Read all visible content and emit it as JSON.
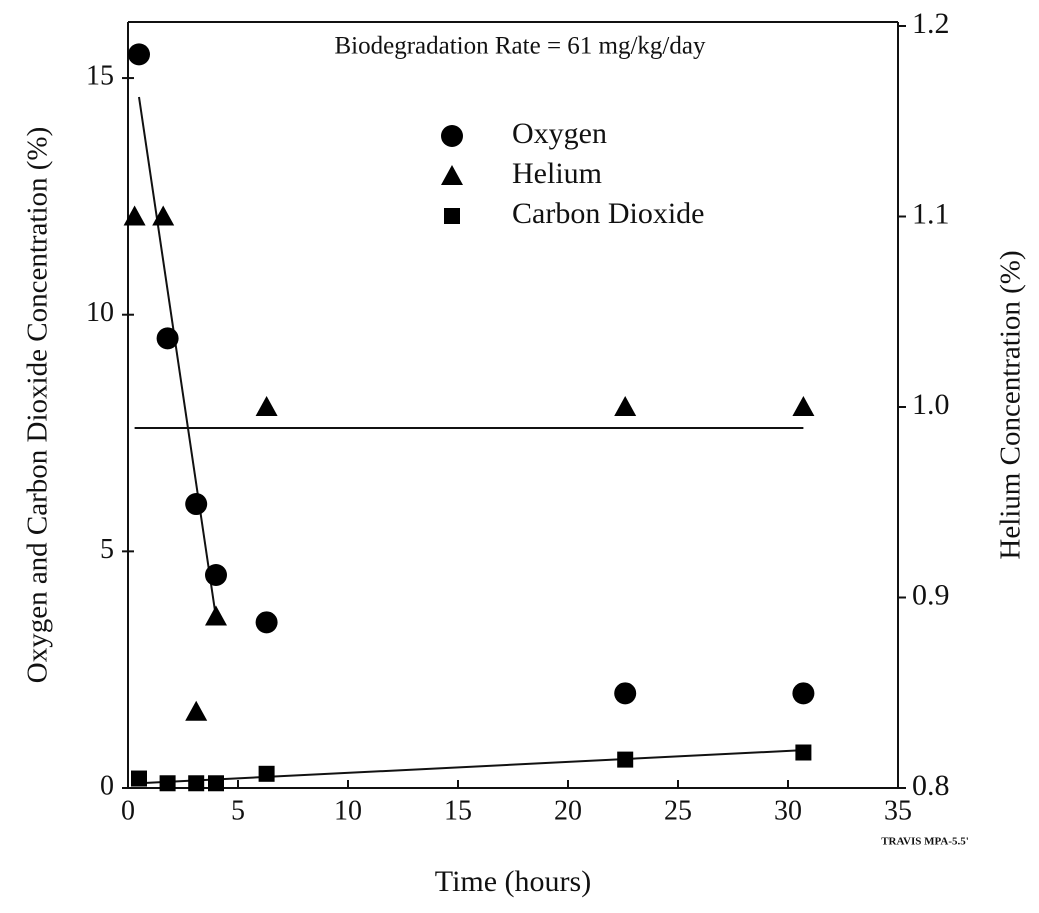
{
  "chart_data": {
    "type": "scatter",
    "annotation": "Biodegradation Rate = 61 mg/kg/day",
    "note": "TRAVIS MPA-5.5'",
    "xlabel": "Time (hours)",
    "ylabel": "Oxygen and Carbon Dioxide Concentration (%)",
    "y2label": "Helium Concentration (%)",
    "xlim": [
      0,
      35
    ],
    "xticks": [
      0,
      5,
      10,
      15,
      20,
      25,
      30,
      35
    ],
    "ylim": [
      0,
      16.1
    ],
    "yticks": [
      0,
      5,
      10,
      15
    ],
    "y2lim": [
      0.8,
      1.2
    ],
    "y2ticks": [
      0.8,
      0.9,
      {
        "value": 1,
        "label": "1.0"
      },
      1.1,
      1.2
    ],
    "legend": "top",
    "series": [
      {
        "name": "Oxygen",
        "color": "#000000",
        "marker": "circle",
        "x": [
          0.5,
          1.8,
          3.1,
          4.0,
          6.3,
          22.6,
          30.7
        ],
        "values": [
          15.5,
          9.5,
          6.0,
          4.5,
          3.5,
          2.0,
          2.0
        ],
        "fit": {
          "x": [
            0.5,
            4.0
          ],
          "values": [
            14.6,
            3.6
          ]
        }
      },
      {
        "name": "Helium",
        "color": "#000000",
        "marker": "triangle",
        "axis": "y2",
        "x": [
          0.3,
          1.6,
          3.1,
          4.0,
          6.3,
          22.6,
          30.7
        ],
        "values": [
          1.1,
          1.1,
          0.84,
          0.89,
          1.0,
          1.0,
          1.0
        ],
        "fit": {
          "x": [
            0.3,
            30.7
          ],
          "values": [
            0.989,
            0.989
          ]
        }
      },
      {
        "name": "Carbon Dioxide",
        "color": "#000000",
        "marker": "square",
        "x": [
          0.5,
          1.8,
          3.1,
          4.0,
          6.3,
          22.6,
          30.7
        ],
        "values": [
          0.2,
          0.1,
          0.1,
          0.1,
          0.3,
          0.6,
          0.75
        ],
        "fit": {
          "x": [
            0.5,
            30.7
          ],
          "values": [
            0.1,
            0.8
          ]
        }
      }
    ]
  }
}
